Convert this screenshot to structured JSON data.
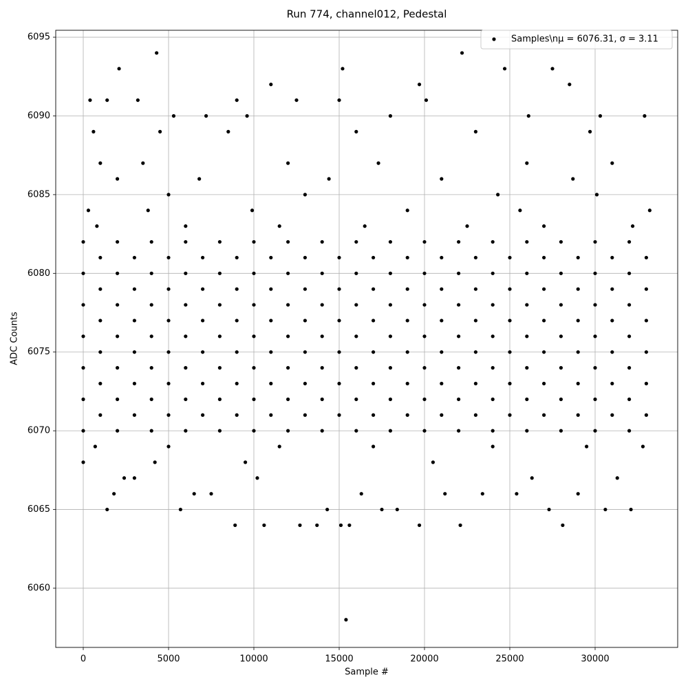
{
  "chart_data": {
    "type": "scatter",
    "title": "Run 774, channel012, Pedestal",
    "xlabel": "Sample #",
    "ylabel": "ADC Counts",
    "xlim": [
      -1613,
      34839
    ],
    "ylim": [
      6056.24,
      6095.44
    ],
    "xticks": [
      0,
      5000,
      10000,
      15000,
      20000,
      25000,
      30000
    ],
    "yticks": [
      6060,
      6065,
      6070,
      6075,
      6080,
      6085,
      6090,
      6095
    ],
    "grid": true,
    "legend": "upper right",
    "series": [
      {
        "name": "Samples\\nμ = 6076.31, σ = 3.11",
        "color": "#000000",
        "x": [
          0,
          2000,
          4000,
          6000,
          8000,
          10000,
          12000,
          14000,
          16000,
          18000,
          20000,
          22000,
          24000,
          26000,
          28000,
          30000,
          32000,
          1000,
          3000,
          5000,
          7000,
          9000,
          11000,
          13000,
          15000,
          17000,
          19000,
          21000,
          23000,
          25000,
          27000,
          29000,
          31000,
          33000,
          0,
          2000,
          4000,
          6000,
          8000,
          10000,
          12000,
          14000,
          16000,
          18000,
          20000,
          22000,
          24000,
          26000,
          28000,
          30000,
          32000,
          1000,
          3000,
          5000,
          7000,
          9000,
          11000,
          13000,
          15000,
          17000,
          19000,
          21000,
          23000,
          25000,
          27000,
          29000,
          31000,
          33000,
          0,
          2000,
          4000,
          6000,
          8000,
          10000,
          12000,
          14000,
          16000,
          18000,
          20000,
          22000,
          24000,
          26000,
          28000,
          30000,
          32000,
          1000,
          3000,
          5000,
          7000,
          9000,
          11000,
          13000,
          15000,
          17000,
          19000,
          21000,
          23000,
          25000,
          27000,
          29000,
          31000,
          33000,
          0,
          2000,
          4000,
          6000,
          8000,
          10000,
          12000,
          14000,
          16000,
          18000,
          20000,
          22000,
          24000,
          26000,
          28000,
          30000,
          32000,
          1000,
          3000,
          5000,
          7000,
          9000,
          11000,
          13000,
          15000,
          17000,
          19000,
          21000,
          23000,
          25000,
          27000,
          29000,
          31000,
          33000,
          0,
          2000,
          4000,
          6000,
          8000,
          10000,
          12000,
          14000,
          16000,
          18000,
          20000,
          22000,
          24000,
          26000,
          28000,
          30000,
          32000,
          1000,
          3000,
          5000,
          7000,
          9000,
          11000,
          13000,
          15000,
          17000,
          19000,
          21000,
          23000,
          25000,
          27000,
          29000,
          31000,
          33000,
          0,
          2000,
          4000,
          6000,
          8000,
          10000,
          12000,
          14000,
          16000,
          18000,
          20000,
          22000,
          24000,
          26000,
          28000,
          30000,
          32000,
          1000,
          3000,
          5000,
          7000,
          9000,
          11000,
          13000,
          15000,
          17000,
          19000,
          21000,
          23000,
          25000,
          27000,
          29000,
          31000,
          33000,
          0,
          2000,
          4000,
          6000,
          8000,
          10000,
          12000,
          14000,
          16000,
          18000,
          20000,
          22000,
          24000,
          26000,
          28000,
          30000,
          32000,
          400,
          2100,
          4300,
          15200,
          22200,
          24700,
          27500,
          11000,
          19700,
          28500,
          1400,
          3200,
          9000,
          12500,
          15000,
          20100,
          26100,
          30300,
          5300,
          7200,
          9600,
          18000,
          32900,
          600,
          4500,
          8500,
          16000,
          23000,
          29700,
          1000,
          3500,
          12000,
          17300,
          26000,
          31000,
          2000,
          6800,
          14400,
          21000,
          28700,
          300,
          3800,
          9900,
          19000,
          25600,
          33200,
          5000,
          13000,
          24300,
          30100,
          800,
          6000,
          11500,
          16500,
          22500,
          27000,
          32200,
          0,
          1400,
          1800,
          2400,
          5700,
          6500,
          8900,
          10600,
          12700,
          13700,
          15400,
          15100,
          15600,
          16300,
          17500,
          19700,
          22100,
          28100,
          30600,
          32100,
          3000,
          7500,
          10200,
          14300,
          18400,
          21200,
          23400,
          25400,
          27300,
          29000,
          31300,
          4200,
          9500,
          20500,
          26300,
          700,
          5000,
          11500,
          17000,
          24000,
          29500,
          32800
        ],
        "values": [
          6070,
          6070,
          6070,
          6070,
          6070,
          6070,
          6070,
          6070,
          6070,
          6070,
          6070,
          6070,
          6070,
          6070,
          6070,
          6070,
          6070,
          6071,
          6071,
          6071,
          6071,
          6071,
          6071,
          6071,
          6071,
          6071,
          6071,
          6071,
          6071,
          6071,
          6071,
          6071,
          6071,
          6071,
          6072,
          6072,
          6072,
          6072,
          6072,
          6072,
          6072,
          6072,
          6072,
          6072,
          6072,
          6072,
          6072,
          6072,
          6072,
          6072,
          6072,
          6073,
          6073,
          6073,
          6073,
          6073,
          6073,
          6073,
          6073,
          6073,
          6073,
          6073,
          6073,
          6073,
          6073,
          6073,
          6073,
          6073,
          6074,
          6074,
          6074,
          6074,
          6074,
          6074,
          6074,
          6074,
          6074,
          6074,
          6074,
          6074,
          6074,
          6074,
          6074,
          6074,
          6074,
          6075,
          6075,
          6075,
          6075,
          6075,
          6075,
          6075,
          6075,
          6075,
          6075,
          6075,
          6075,
          6075,
          6075,
          6075,
          6075,
          6075,
          6076,
          6076,
          6076,
          6076,
          6076,
          6076,
          6076,
          6076,
          6076,
          6076,
          6076,
          6076,
          6076,
          6076,
          6076,
          6076,
          6076,
          6077,
          6077,
          6077,
          6077,
          6077,
          6077,
          6077,
          6077,
          6077,
          6077,
          6077,
          6077,
          6077,
          6077,
          6077,
          6077,
          6077,
          6078,
          6078,
          6078,
          6078,
          6078,
          6078,
          6078,
          6078,
          6078,
          6078,
          6078,
          6078,
          6078,
          6078,
          6078,
          6078,
          6078,
          6079,
          6079,
          6079,
          6079,
          6079,
          6079,
          6079,
          6079,
          6079,
          6079,
          6079,
          6079,
          6079,
          6079,
          6079,
          6079,
          6079,
          6080,
          6080,
          6080,
          6080,
          6080,
          6080,
          6080,
          6080,
          6080,
          6080,
          6080,
          6080,
          6080,
          6080,
          6080,
          6080,
          6080,
          6081,
          6081,
          6081,
          6081,
          6081,
          6081,
          6081,
          6081,
          6081,
          6081,
          6081,
          6081,
          6081,
          6081,
          6081,
          6081,
          6081,
          6082,
          6082,
          6082,
          6082,
          6082,
          6082,
          6082,
          6082,
          6082,
          6082,
          6082,
          6082,
          6082,
          6082,
          6082,
          6082,
          6082,
          6091,
          6093,
          6094,
          6093,
          6094,
          6093,
          6093,
          6092,
          6092,
          6092,
          6091,
          6091,
          6091,
          6091,
          6091,
          6091,
          6090,
          6090,
          6090,
          6090,
          6090,
          6090,
          6090,
          6089,
          6089,
          6089,
          6089,
          6089,
          6089,
          6087,
          6087,
          6087,
          6087,
          6087,
          6087,
          6086,
          6086,
          6086,
          6086,
          6086,
          6084,
          6084,
          6084,
          6084,
          6084,
          6084,
          6085,
          6085,
          6085,
          6085,
          6083,
          6083,
          6083,
          6083,
          6083,
          6083,
          6083,
          6068,
          6065,
          6066,
          6067,
          6065,
          6066,
          6064,
          6064,
          6064,
          6064,
          6058,
          6064,
          6064,
          6066,
          6065,
          6064,
          6064,
          6064,
          6065,
          6065,
          6067,
          6066,
          6067,
          6065,
          6065,
          6066,
          6066,
          6066,
          6065,
          6066,
          6067,
          6068,
          6068,
          6068,
          6067,
          6069,
          6069,
          6069,
          6069,
          6069,
          6069,
          6069
        ]
      }
    ]
  }
}
